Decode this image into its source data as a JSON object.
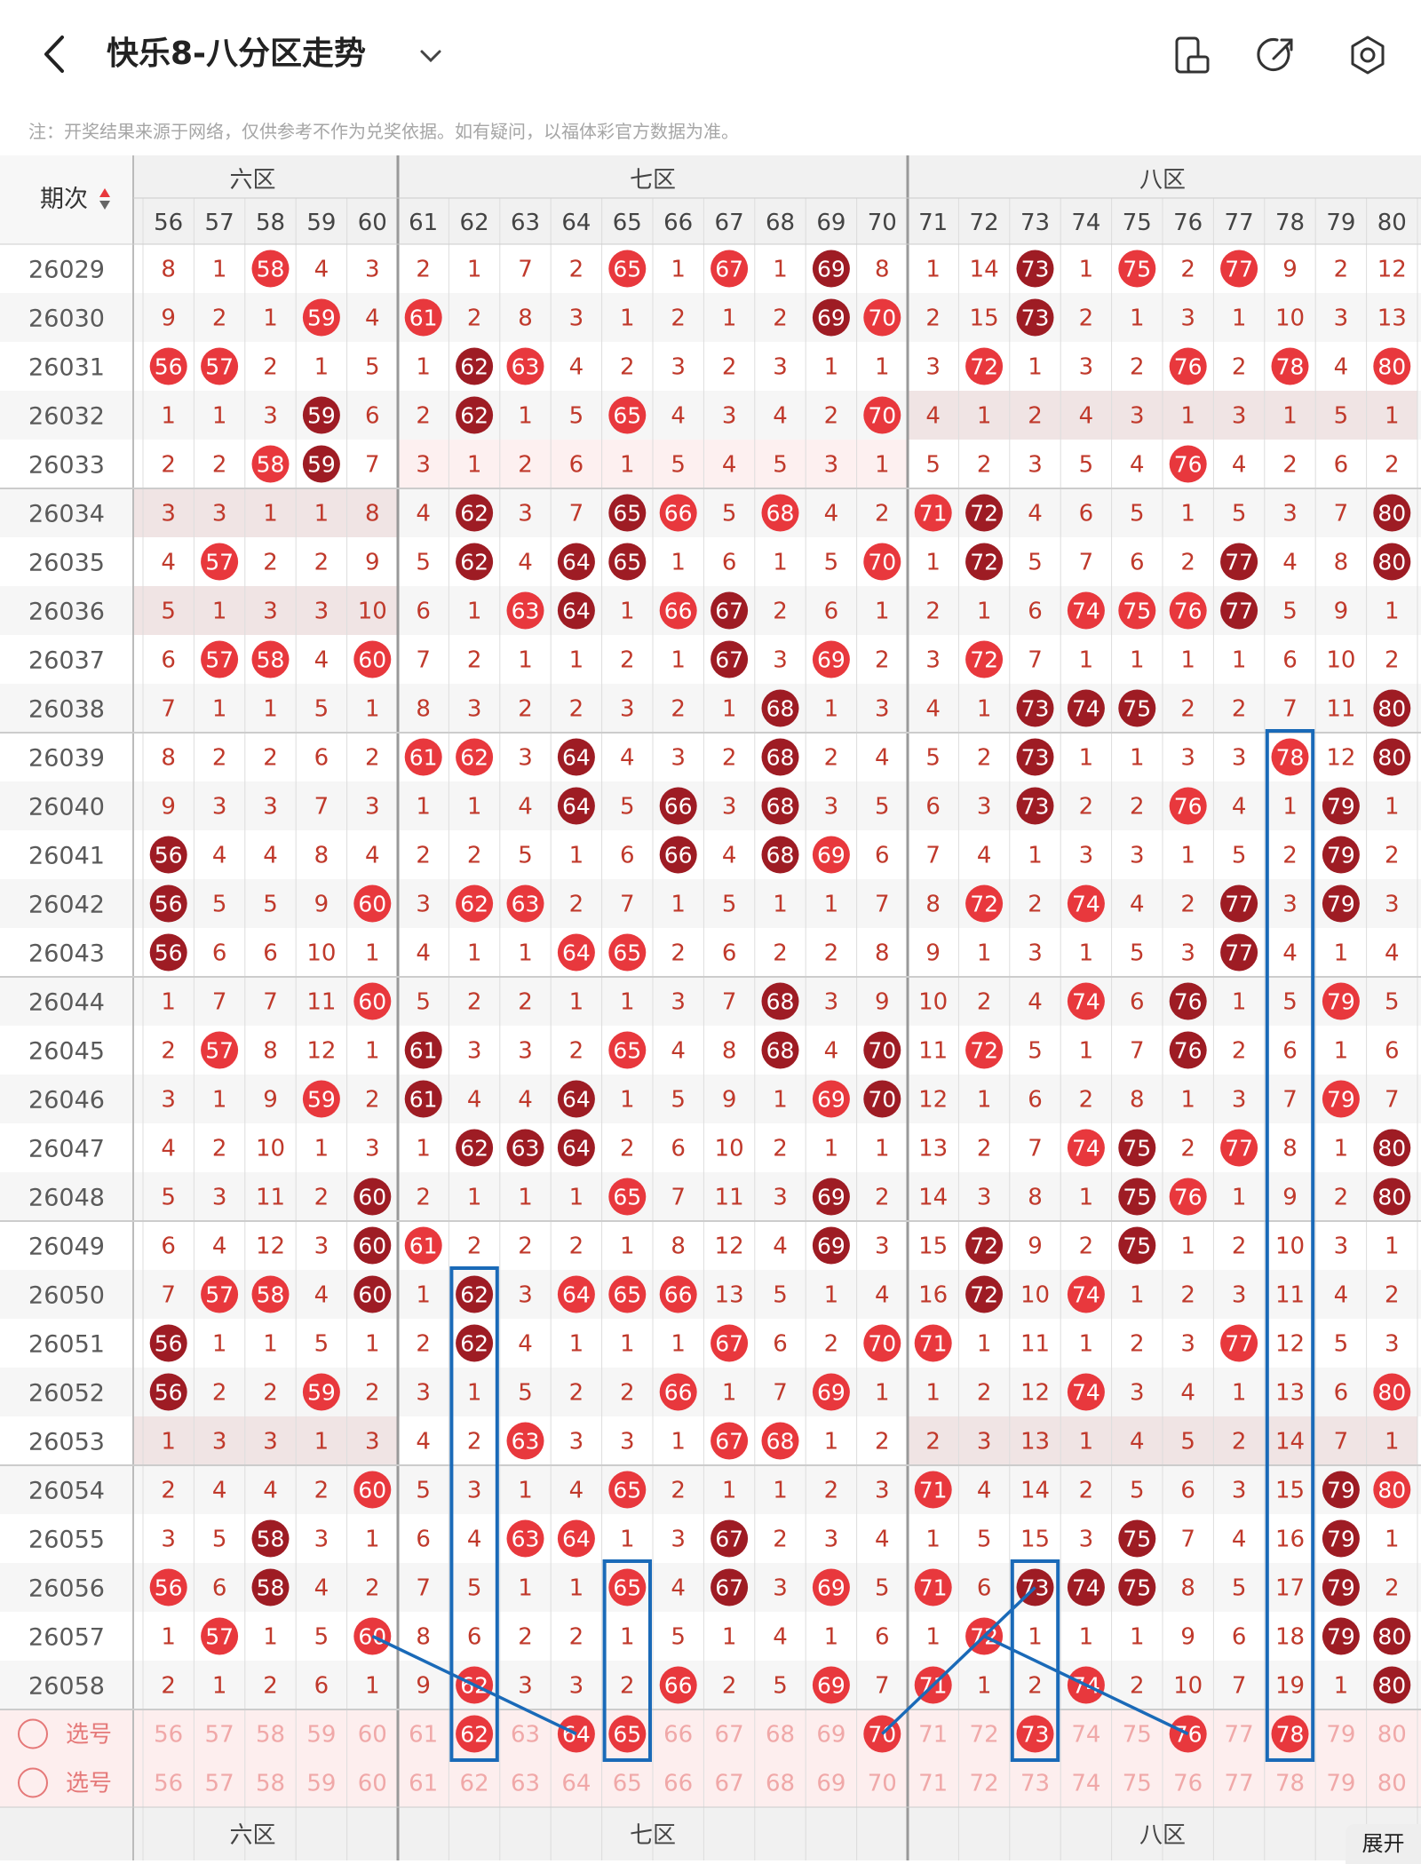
{
  "header": {
    "title": "快乐8-八分区走势",
    "notice": "注：开奖结果来源于网络，仅供参考不作为兑奖依据。如有疑问，以福体彩官方数据为准。",
    "expand_label": "展开"
  },
  "icons": [
    "back-icon",
    "chevron-down-icon",
    "screen-orientation-icon",
    "share-icon",
    "settings-icon"
  ],
  "colors": {
    "hit": "#e8383d",
    "hit_dark": "#9e1c24",
    "miss_text": "#c0392b",
    "lead": "#5a5a5a",
    "select_row": "#fdeeee",
    "box": "#1a6ab8"
  },
  "table": {
    "period_header": "期次",
    "zones": [
      {
        "label": "六区",
        "visible": "六区"
      },
      {
        "label": "七区"
      },
      {
        "label": "八区"
      }
    ],
    "columns": [
      56,
      57,
      58,
      59,
      60,
      61,
      62,
      63,
      64,
      65,
      66,
      67,
      68,
      69,
      70,
      71,
      72,
      73,
      74,
      75,
      76,
      77,
      78,
      79,
      80
    ],
    "rows": [
      {
        "period": "26029",
        "cells": [
          "8",
          "1",
          "58",
          "4",
          "3",
          "2",
          "1",
          "7",
          "2",
          "65",
          "1",
          "67",
          "1",
          "69",
          "8",
          "1",
          "14",
          "73",
          "1",
          "75",
          "2",
          "77",
          "9",
          "2",
          "12"
        ]
      },
      {
        "period": "26030",
        "cells": [
          "9",
          "2",
          "1",
          "59",
          "4",
          "61",
          "2",
          "8",
          "3",
          "1",
          "2",
          "1",
          "2",
          "69",
          "70",
          "2",
          "15",
          "73",
          "2",
          "1",
          "3",
          "1",
          "10",
          "3",
          "13"
        ]
      },
      {
        "period": "26031",
        "cells": [
          "56",
          "57",
          "2",
          "1",
          "5",
          "1",
          "62",
          "63",
          "4",
          "2",
          "3",
          "2",
          "3",
          "1",
          "1",
          "3",
          "72",
          "1",
          "3",
          "2",
          "76",
          "2",
          "78",
          "4",
          "80"
        ]
      },
      {
        "period": "26032",
        "cells": [
          "1",
          "1",
          "3",
          "59",
          "6",
          "2",
          "62",
          "1",
          "5",
          "65",
          "4",
          "3",
          "4",
          "2",
          "70",
          "4",
          "1",
          "2",
          "4",
          "3",
          "1",
          "3",
          "1",
          "5",
          "1"
        ]
      },
      {
        "period": "26033",
        "cells": [
          "2",
          "2",
          "58",
          "59",
          "7",
          "3",
          "1",
          "2",
          "6",
          "1",
          "5",
          "4",
          "5",
          "3",
          "1",
          "5",
          "2",
          "3",
          "5",
          "4",
          "76",
          "4",
          "2",
          "6",
          "2"
        ]
      },
      {
        "period": "26034",
        "cells": [
          "3",
          "3",
          "1",
          "1",
          "8",
          "4",
          "62",
          "3",
          "7",
          "65",
          "66",
          "5",
          "68",
          "4",
          "2",
          "71",
          "72",
          "4",
          "6",
          "5",
          "1",
          "5",
          "3",
          "7",
          "80"
        ]
      },
      {
        "period": "26035",
        "cells": [
          "4",
          "57",
          "2",
          "2",
          "9",
          "5",
          "62",
          "4",
          "64",
          "65",
          "1",
          "6",
          "1",
          "5",
          "70",
          "1",
          "72",
          "5",
          "7",
          "6",
          "2",
          "77",
          "4",
          "8",
          "80"
        ]
      },
      {
        "period": "26036",
        "cells": [
          "5",
          "1",
          "3",
          "3",
          "10",
          "6",
          "1",
          "63",
          "64",
          "1",
          "66",
          "67",
          "2",
          "6",
          "1",
          "2",
          "1",
          "6",
          "74",
          "75",
          "76",
          "77",
          "5",
          "9",
          "1"
        ]
      },
      {
        "period": "26037",
        "cells": [
          "6",
          "57",
          "58",
          "4",
          "60",
          "7",
          "2",
          "1",
          "1",
          "2",
          "1",
          "67",
          "3",
          "69",
          "2",
          "3",
          "72",
          "7",
          "1",
          "1",
          "1",
          "1",
          "6",
          "10",
          "2"
        ]
      },
      {
        "period": "26038",
        "cells": [
          "7",
          "1",
          "1",
          "5",
          "1",
          "8",
          "3",
          "2",
          "2",
          "3",
          "2",
          "1",
          "68",
          "1",
          "3",
          "4",
          "1",
          "73",
          "74",
          "75",
          "2",
          "2",
          "7",
          "11",
          "80"
        ]
      },
      {
        "period": "26039",
        "cells": [
          "8",
          "2",
          "2",
          "6",
          "2",
          "61",
          "62",
          "3",
          "64",
          "4",
          "3",
          "2",
          "68",
          "2",
          "4",
          "5",
          "2",
          "73",
          "1",
          "1",
          "3",
          "3",
          "78",
          "12",
          "80"
        ]
      },
      {
        "period": "26040",
        "cells": [
          "9",
          "3",
          "3",
          "7",
          "3",
          "1",
          "1",
          "4",
          "64",
          "5",
          "66",
          "3",
          "68",
          "3",
          "5",
          "6",
          "3",
          "73",
          "2",
          "2",
          "76",
          "4",
          "1",
          "79",
          "1"
        ]
      },
      {
        "period": "26041",
        "cells": [
          "56",
          "4",
          "4",
          "8",
          "4",
          "2",
          "2",
          "5",
          "1",
          "6",
          "66",
          "4",
          "68",
          "69",
          "6",
          "7",
          "4",
          "1",
          "3",
          "3",
          "1",
          "5",
          "2",
          "79",
          "2"
        ]
      },
      {
        "period": "26042",
        "cells": [
          "56",
          "5",
          "5",
          "9",
          "60",
          "3",
          "62",
          "63",
          "2",
          "7",
          "1",
          "5",
          "1",
          "1",
          "7",
          "8",
          "72",
          "2",
          "74",
          "4",
          "2",
          "77",
          "3",
          "79",
          "3"
        ]
      },
      {
        "period": "26043",
        "cells": [
          "56",
          "6",
          "6",
          "10",
          "1",
          "4",
          "1",
          "1",
          "64",
          "65",
          "2",
          "6",
          "2",
          "2",
          "8",
          "9",
          "1",
          "3",
          "1",
          "5",
          "3",
          "77",
          "4",
          "1",
          "4"
        ]
      },
      {
        "period": "26044",
        "cells": [
          "1",
          "7",
          "7",
          "11",
          "60",
          "5",
          "2",
          "2",
          "1",
          "1",
          "3",
          "7",
          "68",
          "3",
          "9",
          "10",
          "2",
          "4",
          "74",
          "6",
          "76",
          "1",
          "5",
          "79",
          "5"
        ]
      },
      {
        "period": "26045",
        "cells": [
          "2",
          "57",
          "8",
          "12",
          "1",
          "61",
          "3",
          "3",
          "2",
          "65",
          "4",
          "8",
          "68",
          "4",
          "70",
          "11",
          "72",
          "5",
          "1",
          "7",
          "76",
          "2",
          "6",
          "1",
          "6"
        ]
      },
      {
        "period": "26046",
        "cells": [
          "3",
          "1",
          "9",
          "59",
          "2",
          "61",
          "4",
          "4",
          "64",
          "1",
          "5",
          "9",
          "1",
          "69",
          "70",
          "12",
          "1",
          "6",
          "2",
          "8",
          "1",
          "3",
          "7",
          "79",
          "7"
        ]
      },
      {
        "period": "26047",
        "cells": [
          "4",
          "2",
          "10",
          "1",
          "3",
          "1",
          "62",
          "63",
          "64",
          "2",
          "6",
          "10",
          "2",
          "1",
          "1",
          "13",
          "2",
          "7",
          "74",
          "75",
          "2",
          "77",
          "8",
          "1",
          "80"
        ]
      },
      {
        "period": "26048",
        "cells": [
          "5",
          "3",
          "11",
          "2",
          "60",
          "2",
          "1",
          "1",
          "1",
          "65",
          "7",
          "11",
          "3",
          "69",
          "2",
          "14",
          "3",
          "8",
          "1",
          "75",
          "76",
          "1",
          "9",
          "2",
          "80"
        ]
      },
      {
        "period": "26049",
        "cells": [
          "6",
          "4",
          "12",
          "3",
          "60",
          "61",
          "2",
          "2",
          "2",
          "1",
          "8",
          "12",
          "4",
          "69",
          "3",
          "15",
          "72",
          "9",
          "2",
          "75",
          "1",
          "2",
          "10",
          "3",
          "1"
        ]
      },
      {
        "period": "26050",
        "cells": [
          "7",
          "57",
          "58",
          "4",
          "60",
          "1",
          "62",
          "3",
          "64",
          "65",
          "66",
          "13",
          "5",
          "1",
          "4",
          "16",
          "72",
          "10",
          "74",
          "1",
          "2",
          "3",
          "11",
          "4",
          "2"
        ]
      },
      {
        "period": "26051",
        "cells": [
          "56",
          "1",
          "1",
          "5",
          "1",
          "2",
          "62",
          "4",
          "1",
          "1",
          "1",
          "67",
          "6",
          "2",
          "70",
          "71",
          "1",
          "11",
          "1",
          "2",
          "3",
          "77",
          "12",
          "5",
          "3"
        ]
      },
      {
        "period": "26052",
        "cells": [
          "56",
          "2",
          "2",
          "59",
          "2",
          "3",
          "1",
          "5",
          "2",
          "2",
          "66",
          "1",
          "7",
          "69",
          "1",
          "1",
          "2",
          "12",
          "74",
          "3",
          "4",
          "1",
          "13",
          "6",
          "80"
        ]
      },
      {
        "period": "26053",
        "cells": [
          "1",
          "3",
          "3",
          "1",
          "3",
          "4",
          "2",
          "63",
          "3",
          "3",
          "1",
          "67",
          "68",
          "1",
          "2",
          "2",
          "3",
          "13",
          "1",
          "4",
          "5",
          "2",
          "14",
          "7",
          "1"
        ]
      },
      {
        "period": "26054",
        "cells": [
          "2",
          "4",
          "4",
          "2",
          "60",
          "5",
          "3",
          "1",
          "4",
          "65",
          "2",
          "1",
          "1",
          "2",
          "3",
          "71",
          "4",
          "14",
          "2",
          "5",
          "6",
          "3",
          "15",
          "79",
          "80"
        ]
      },
      {
        "period": "26055",
        "cells": [
          "3",
          "5",
          "58",
          "3",
          "1",
          "6",
          "4",
          "63",
          "64",
          "1",
          "3",
          "67",
          "2",
          "3",
          "4",
          "1",
          "5",
          "15",
          "3",
          "75",
          "7",
          "4",
          "16",
          "79",
          "1"
        ]
      },
      {
        "period": "26056",
        "cells": [
          "56",
          "6",
          "58",
          "4",
          "2",
          "7",
          "5",
          "1",
          "1",
          "65",
          "4",
          "67",
          "3",
          "69",
          "5",
          "71",
          "6",
          "73",
          "74",
          "75",
          "8",
          "5",
          "17",
          "79",
          "2"
        ]
      },
      {
        "period": "26057",
        "cells": [
          "1",
          "57",
          "1",
          "5",
          "60",
          "8",
          "6",
          "2",
          "2",
          "1",
          "5",
          "1",
          "4",
          "1",
          "6",
          "1",
          "72",
          "1",
          "1",
          "1",
          "9",
          "6",
          "18",
          "79",
          "80"
        ]
      },
      {
        "period": "26058",
        "cells": [
          "2",
          "1",
          "2",
          "6",
          "1",
          "9",
          "62",
          "3",
          "3",
          "2",
          "66",
          "2",
          "5",
          "69",
          "7",
          "71",
          "1",
          "2",
          "74",
          "2",
          "10",
          "7",
          "19",
          "1",
          "80"
        ]
      }
    ],
    "select_rows": [
      {
        "label": "选号",
        "picked": [
          62,
          64,
          65,
          70,
          73,
          76,
          78
        ]
      },
      {
        "label": "选号",
        "picked": []
      }
    ]
  }
}
